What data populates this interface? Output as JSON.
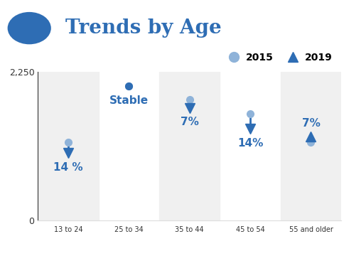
{
  "chart_data": {
    "type": "scatter",
    "title": "Trends by Age",
    "categories": [
      "13 to 24",
      "25 to 34",
      "35 to 44",
      "45 to 54",
      "55 and older"
    ],
    "series": [
      {
        "name": "2015",
        "color": "#8fb3d9",
        "marker": "circle",
        "values": [
          1180,
          2030,
          1830,
          1610,
          1180
        ]
      },
      {
        "name": "2019",
        "color": "#2e6db4",
        "marker": "triangle",
        "values": [
          1015,
          2030,
          1700,
          1385,
          1265
        ]
      }
    ],
    "annotations": [
      "14 %",
      "Stable",
      "7%",
      "14%",
      "7%"
    ],
    "ylim": [
      0,
      2250
    ],
    "yticks": [
      0,
      {
        "value": 2250,
        "label": "2,250"
      }
    ],
    "legend": "upper right"
  }
}
